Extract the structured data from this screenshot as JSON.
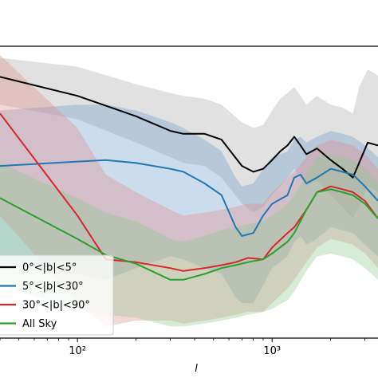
{
  "chart_data": {
    "type": "line",
    "xscale": "log",
    "xlim": [
      40,
      3500
    ],
    "ylim": [
      0,
      1
    ],
    "xlabel": "l",
    "x_ticks": [
      {
        "value": 100,
        "label": "10²"
      },
      {
        "value": 1000,
        "label": "10³"
      }
    ],
    "grid": false,
    "legend_location": "lower-left",
    "legend": [
      {
        "label": "0°<|b|<5°",
        "color": "#000000"
      },
      {
        "label": "5°<|b|<30°",
        "color": "#1f77b4"
      },
      {
        "label": "30°<|b|<90°",
        "color": "#d62728"
      },
      {
        "label": "All Sky",
        "color": "#2ca02c"
      }
    ],
    "series": [
      {
        "name": "0°<|b|<5°",
        "color": "#000000",
        "band_color": "#a8a8a8",
        "x": [
          40,
          100,
          200,
          300,
          350,
          450,
          550,
          700,
          800,
          900,
          1000,
          1100,
          1200,
          1300,
          1400,
          1500,
          1700,
          2000,
          2300,
          2600,
          2800,
          3100,
          3500
        ],
        "y": [
          0.895,
          0.83,
          0.76,
          0.71,
          0.7,
          0.7,
          0.68,
          0.59,
          0.57,
          0.58,
          0.61,
          0.64,
          0.66,
          0.69,
          0.66,
          0.63,
          0.65,
          0.61,
          0.58,
          0.55,
          0.6,
          0.67,
          0.66
        ],
        "upper": [
          0.96,
          0.93,
          0.87,
          0.84,
          0.83,
          0.82,
          0.8,
          0.74,
          0.72,
          0.73,
          0.78,
          0.82,
          0.84,
          0.86,
          0.83,
          0.8,
          0.83,
          0.8,
          0.79,
          0.77,
          0.86,
          0.92,
          0.9
        ],
        "lower": [
          0.8,
          0.75,
          0.67,
          0.62,
          0.6,
          0.59,
          0.55,
          0.46,
          0.43,
          0.45,
          0.49,
          0.52,
          0.55,
          0.58,
          0.55,
          0.52,
          0.54,
          0.49,
          0.45,
          0.41,
          0.45,
          0.52,
          0.5
        ]
      },
      {
        "name": "5°<|b|<30°",
        "color": "#1f77b4",
        "band_color": "#6a9cc9",
        "x": [
          40,
          100,
          140,
          200,
          300,
          350,
          450,
          550,
          650,
          700,
          800,
          900,
          1000,
          1200,
          1300,
          1400,
          1500,
          1700,
          2000,
          2300,
          2600,
          3000,
          3500
        ],
        "y": [
          0.59,
          0.605,
          0.61,
          0.6,
          0.58,
          0.57,
          0.53,
          0.49,
          0.38,
          0.35,
          0.36,
          0.42,
          0.46,
          0.49,
          0.55,
          0.56,
          0.53,
          0.55,
          0.58,
          0.57,
          0.56,
          0.52,
          0.47
        ],
        "upper": [
          0.78,
          0.8,
          0.8,
          0.78,
          0.74,
          0.72,
          0.68,
          0.64,
          0.55,
          0.52,
          0.53,
          0.58,
          0.62,
          0.64,
          0.68,
          0.69,
          0.67,
          0.69,
          0.71,
          0.7,
          0.69,
          0.66,
          0.62
        ],
        "lower": [
          0.25,
          0.22,
          0.2,
          0.24,
          0.28,
          0.27,
          0.24,
          0.22,
          0.14,
          0.12,
          0.12,
          0.18,
          0.24,
          0.28,
          0.33,
          0.35,
          0.32,
          0.34,
          0.38,
          0.37,
          0.36,
          0.32,
          0.28
        ]
      },
      {
        "name": "30°<|b|<90°",
        "color": "#d62728",
        "band_color": "#e0898a",
        "x": [
          40,
          100,
          140,
          200,
          300,
          350,
          450,
          550,
          650,
          750,
          900,
          1000,
          1200,
          1300,
          1500,
          1700,
          2000,
          2300,
          2600,
          3000,
          3500
        ],
        "y": [
          0.77,
          0.42,
          0.27,
          0.26,
          0.24,
          0.23,
          0.24,
          0.25,
          0.26,
          0.275,
          0.27,
          0.31,
          0.36,
          0.38,
          0.44,
          0.5,
          0.52,
          0.51,
          0.5,
          0.47,
          0.41
        ],
        "upper": [
          0.97,
          0.72,
          0.56,
          0.5,
          0.44,
          0.42,
          0.43,
          0.44,
          0.45,
          0.46,
          0.46,
          0.5,
          0.55,
          0.57,
          0.62,
          0.66,
          0.68,
          0.67,
          0.66,
          0.63,
          0.58
        ],
        "lower": [
          0.42,
          0.12,
          0.04,
          0.06,
          0.06,
          0.05,
          0.06,
          0.07,
          0.08,
          0.09,
          0.09,
          0.12,
          0.17,
          0.2,
          0.26,
          0.31,
          0.34,
          0.33,
          0.32,
          0.29,
          0.24
        ]
      },
      {
        "name": "All Sky",
        "color": "#2ca02c",
        "band_color": "#8cc98c",
        "x": [
          40,
          100,
          140,
          200,
          300,
          350,
          450,
          550,
          650,
          750,
          900,
          1000,
          1200,
          1300,
          1500,
          1700,
          2000,
          2300,
          2600,
          3000,
          3500
        ],
        "y": [
          0.48,
          0.34,
          0.285,
          0.255,
          0.2,
          0.2,
          0.22,
          0.24,
          0.25,
          0.26,
          0.27,
          0.29,
          0.33,
          0.36,
          0.44,
          0.5,
          0.51,
          0.5,
          0.49,
          0.46,
          0.41
        ],
        "upper": [
          0.6,
          0.48,
          0.43,
          0.4,
          0.34,
          0.33,
          0.35,
          0.37,
          0.38,
          0.39,
          0.4,
          0.42,
          0.46,
          0.49,
          0.56,
          0.62,
          0.63,
          0.62,
          0.61,
          0.58,
          0.53
        ],
        "lower": [
          0.18,
          0.1,
          0.08,
          0.07,
          0.04,
          0.04,
          0.05,
          0.06,
          0.07,
          0.08,
          0.09,
          0.1,
          0.13,
          0.16,
          0.23,
          0.28,
          0.29,
          0.28,
          0.27,
          0.24,
          0.2
        ]
      }
    ]
  }
}
